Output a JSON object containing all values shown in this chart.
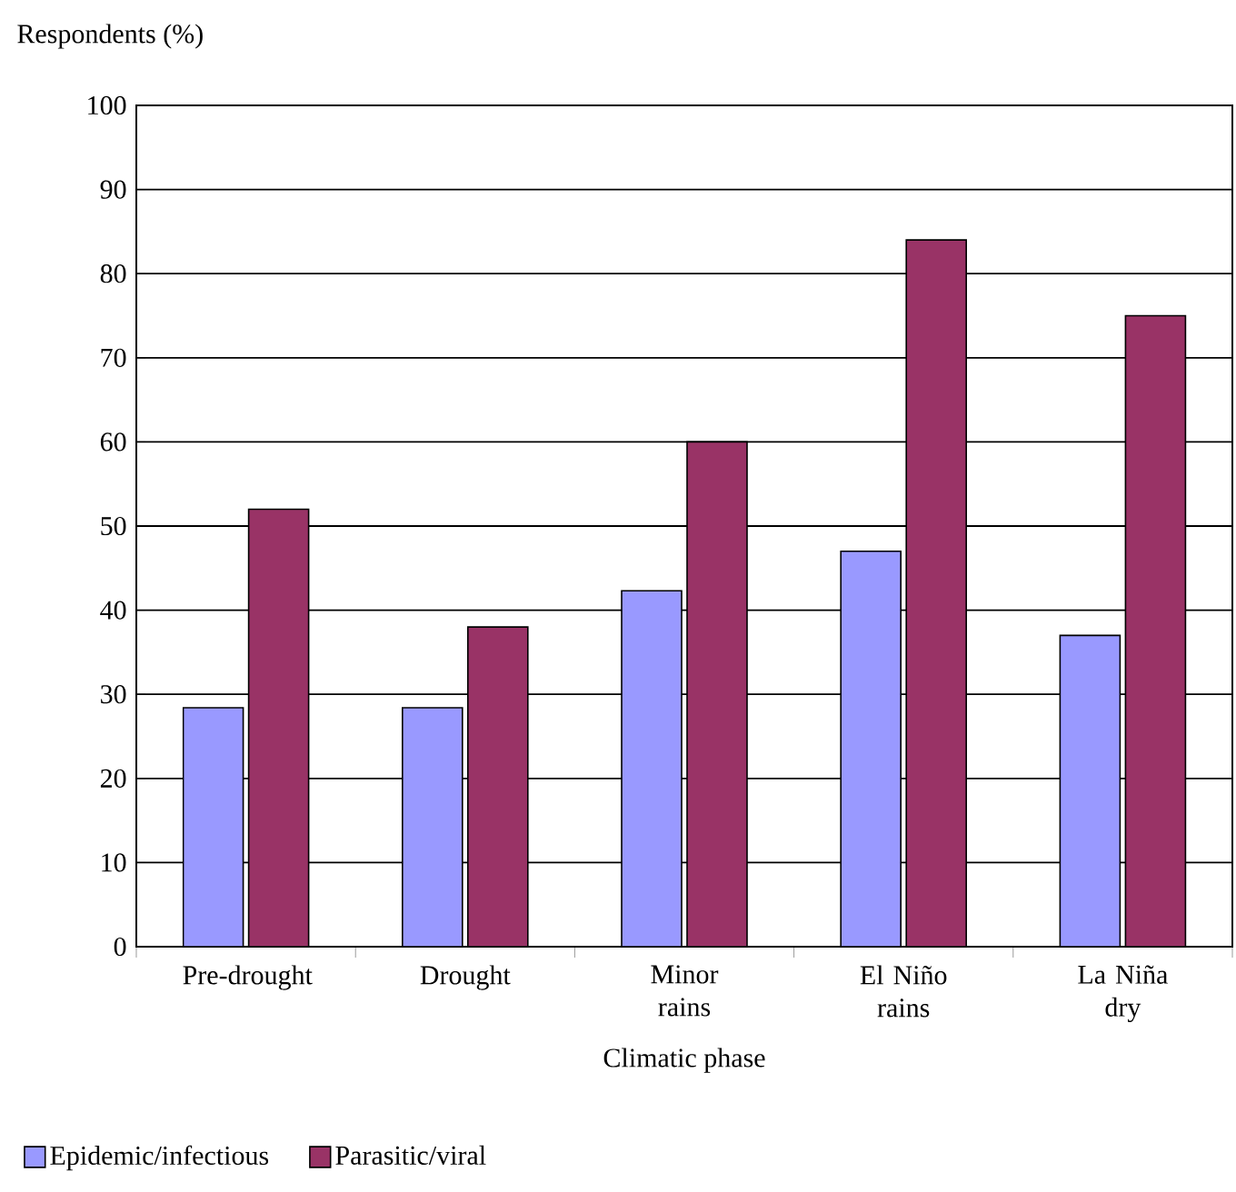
{
  "chart_data": {
    "type": "bar",
    "xlabel": "Climatic phase",
    "ylabel": "Respondents (%)",
    "categories": [
      "Pre-drought",
      "Drought",
      "Minor rains",
      "El Niño rains",
      "La Niña dry"
    ],
    "series": [
      {
        "name": "Epidemic/infectious",
        "color": "#9999ff",
        "values": [
          28.4,
          28.4,
          42.3,
          47,
          37
        ]
      },
      {
        "name": "Parasitic/viral",
        "color": "#993366",
        "values": [
          52,
          38,
          60,
          84,
          75
        ]
      }
    ],
    "ylim": [
      0,
      100
    ],
    "yticks": [
      0,
      10,
      20,
      30,
      40,
      50,
      60,
      70,
      80,
      90,
      100
    ],
    "grid": "y",
    "legend": "bottom"
  }
}
